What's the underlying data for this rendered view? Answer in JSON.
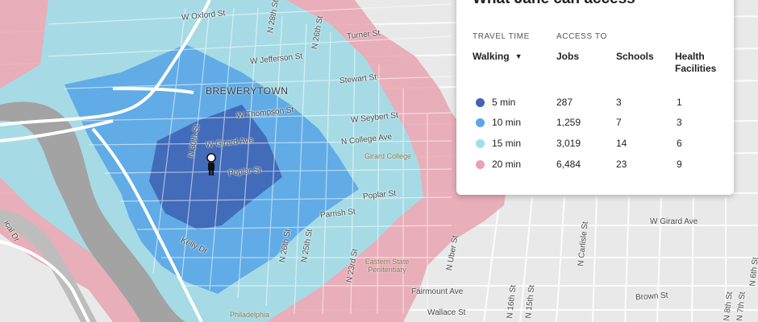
{
  "panel": {
    "title": "What Jane can access",
    "travel_time_header": "TRAVEL TIME",
    "access_to_header": "ACCESS TO",
    "mode": "Walking",
    "metric_headers": {
      "jobs": "Jobs",
      "schools": "Schools",
      "health": "Health Facilities"
    },
    "rows": [
      {
        "time": "5 min",
        "jobs": "287",
        "schools": "3",
        "health": "1",
        "color": "#3f64b4"
      },
      {
        "time": "10 min",
        "jobs": "1,259",
        "schools": "7",
        "health": "3",
        "color": "#5aa6e6"
      },
      {
        "time": "15 min",
        "jobs": "3,019",
        "schools": "14",
        "health": "6",
        "color": "#9fe0ea"
      },
      {
        "time": "20 min",
        "jobs": "6,484",
        "schools": "23",
        "health": "9",
        "color": "#e8a3b0"
      }
    ]
  },
  "map": {
    "neighborhood": "BREWERYTOWN",
    "pois": {
      "girard_college": "Girard College",
      "eastern_state": "Eastern State Penitentiary",
      "philadelphia": "Philadelphia"
    },
    "streets": {
      "oxford": "W Oxford St",
      "n28": "N 28th St",
      "n26": "N 26th St",
      "turner": "Turner St",
      "jefferson": "W Jefferson St",
      "stewart": "Stewart St",
      "thompson": "W Thompson St",
      "seybert": "W Seybert St",
      "n30": "N 30th St",
      "girard_ave": "W Girard Ave",
      "college_ave": "N College Ave",
      "poplar_w": "Poplar St",
      "poplar_e": "Poplar St",
      "parrish": "Parrish St",
      "n26_s": "N 26th St",
      "n25_s": "N 25th St",
      "n23": "N 23rd St",
      "kelly": "Kelly Dr",
      "uber": "N Uber St",
      "fairmount": "Fairmount Ave",
      "wallace": "Wallace St",
      "n16": "N 16th St",
      "n15": "N 15th St",
      "carlisle": "N Carlisle St",
      "brown": "Brown St",
      "girard_e": "W Girard Ave",
      "n8": "N 8th St",
      "n7": "N 7th St",
      "n6": "N 6th St",
      "edge": "ical Dr"
    }
  }
}
